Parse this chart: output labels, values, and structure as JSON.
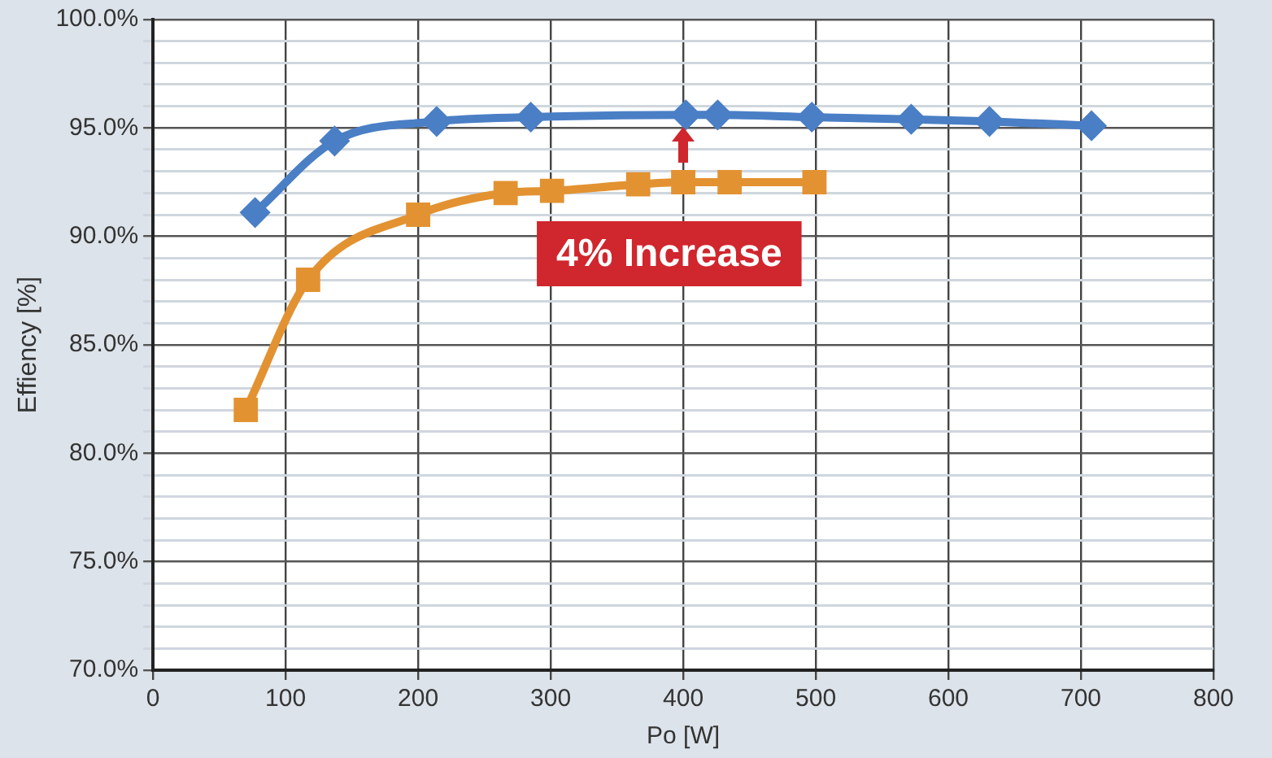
{
  "chart_data": {
    "type": "line",
    "xlabel": "Po [W]",
    "ylabel": "Effiency [%]",
    "xlim": [
      0,
      800
    ],
    "xticks": [
      0,
      100,
      200,
      300,
      400,
      500,
      600,
      700,
      800
    ],
    "ylim": [
      70,
      100
    ],
    "yticks": [
      {
        "value": 70,
        "label": "70.0%"
      },
      {
        "value": 71,
        "label": null
      },
      {
        "value": 72,
        "label": null
      },
      {
        "value": 73,
        "label": null
      },
      {
        "value": 74,
        "label": null
      },
      {
        "value": 75,
        "label": "75.0%"
      },
      {
        "value": 76,
        "label": null
      },
      {
        "value": 77,
        "label": null
      },
      {
        "value": 78,
        "label": null
      },
      {
        "value": 79,
        "label": null
      },
      {
        "value": 80,
        "label": "80.0%"
      },
      {
        "value": 81,
        "label": null
      },
      {
        "value": 82,
        "label": null
      },
      {
        "value": 83,
        "label": null
      },
      {
        "value": 84,
        "label": null
      },
      {
        "value": 85,
        "label": "85.0%"
      },
      {
        "value": 86,
        "label": null
      },
      {
        "value": 87,
        "label": null
      },
      {
        "value": 88,
        "label": null
      },
      {
        "value": 89,
        "label": null
      },
      {
        "value": 90,
        "label": "90.0%"
      },
      {
        "value": 91,
        "label": null
      },
      {
        "value": 92,
        "label": null
      },
      {
        "value": 93,
        "label": null
      },
      {
        "value": 94,
        "label": null
      },
      {
        "value": 95,
        "label": "95.0%"
      },
      {
        "value": 96,
        "label": null
      },
      {
        "value": 97,
        "label": null
      },
      {
        "value": 98,
        "label": null
      },
      {
        "value": 99,
        "label": null
      },
      {
        "value": 100,
        "label": "100.0%"
      }
    ],
    "grid": true,
    "legend": false,
    "series": [
      {
        "color": "#e39232",
        "marker": "square",
        "x": [
          70,
          117,
          200,
          266,
          301,
          366,
          400,
          435,
          499
        ],
        "values": [
          82.0,
          88.0,
          91.0,
          92.0,
          92.1,
          92.4,
          92.5,
          92.5,
          92.5
        ]
      },
      {
        "color": "#4a7fc6",
        "marker": "diamond",
        "x": [
          77,
          137,
          214,
          285,
          402,
          426,
          497,
          572,
          631,
          708
        ],
        "values": [
          91.1,
          94.4,
          95.3,
          95.5,
          95.6,
          95.6,
          95.5,
          95.4,
          95.3,
          95.1
        ]
      }
    ],
    "annotations": [
      "4% Increase"
    ]
  }
}
